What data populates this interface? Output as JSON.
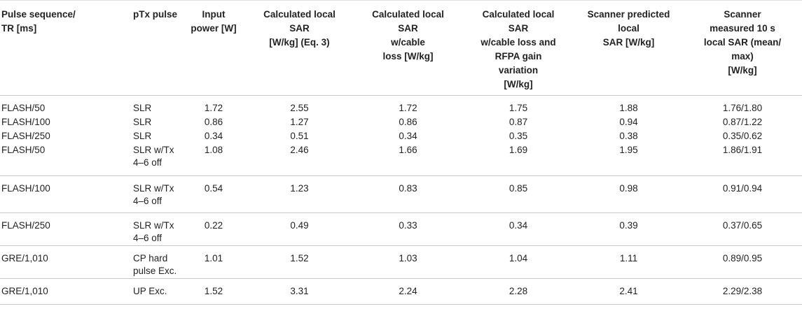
{
  "table": {
    "headers": [
      "Pulse sequence/\nTR [ms]",
      "pTx pulse",
      "Input\npower [W]",
      "Calculated local\nSAR\n[W/kg] (Eq. 3)",
      "Calculated local\nSAR\nw/cable\nloss [W/kg]",
      "Calculated local\nSAR\nw/cable loss and\nRFPA gain\nvariation\n[W/kg]",
      "Scanner predicted\nlocal\nSAR [W/kg]",
      "Scanner\nmeasured 10 s\nlocal SAR (mean/\nmax)\n[W/kg]"
    ],
    "rows": [
      [
        "FLASH/50",
        "SLR",
        "1.72",
        "2.55",
        "1.72",
        "1.75",
        "1.88",
        "1.76/1.80"
      ],
      [
        "FLASH/100",
        "SLR",
        "0.86",
        "1.27",
        "0.86",
        "0.87",
        "0.94",
        "0.87/1.22"
      ],
      [
        "FLASH/250",
        "SLR",
        "0.34",
        "0.51",
        "0.34",
        "0.35",
        "0.38",
        "0.35/0.62"
      ],
      [
        "FLASH/50",
        "SLR w/Tx\n4–6 off",
        "1.08",
        "2.46",
        "1.66",
        "1.69",
        "1.95",
        "1.86/1.91"
      ],
      [
        "FLASH/100",
        "SLR w/Tx\n4–6 off",
        "0.54",
        "1.23",
        "0.83",
        "0.85",
        "0.98",
        "0.91/0.94"
      ],
      [
        "FLASH/250",
        "SLR w/Tx\n4–6 off",
        "0.22",
        "0.49",
        "0.33",
        "0.34",
        "0.39",
        "0.37/0.65"
      ],
      [
        "GRE/1,010",
        "CP hard\npulse Exc.",
        "1.01",
        "1.52",
        "1.03",
        "1.04",
        "1.11",
        "0.89/0.95"
      ],
      [
        "GRE/1,010",
        "UP Exc.",
        "1.52",
        "3.31",
        "2.24",
        "2.28",
        "2.41",
        "2.29/2.38"
      ]
    ]
  }
}
